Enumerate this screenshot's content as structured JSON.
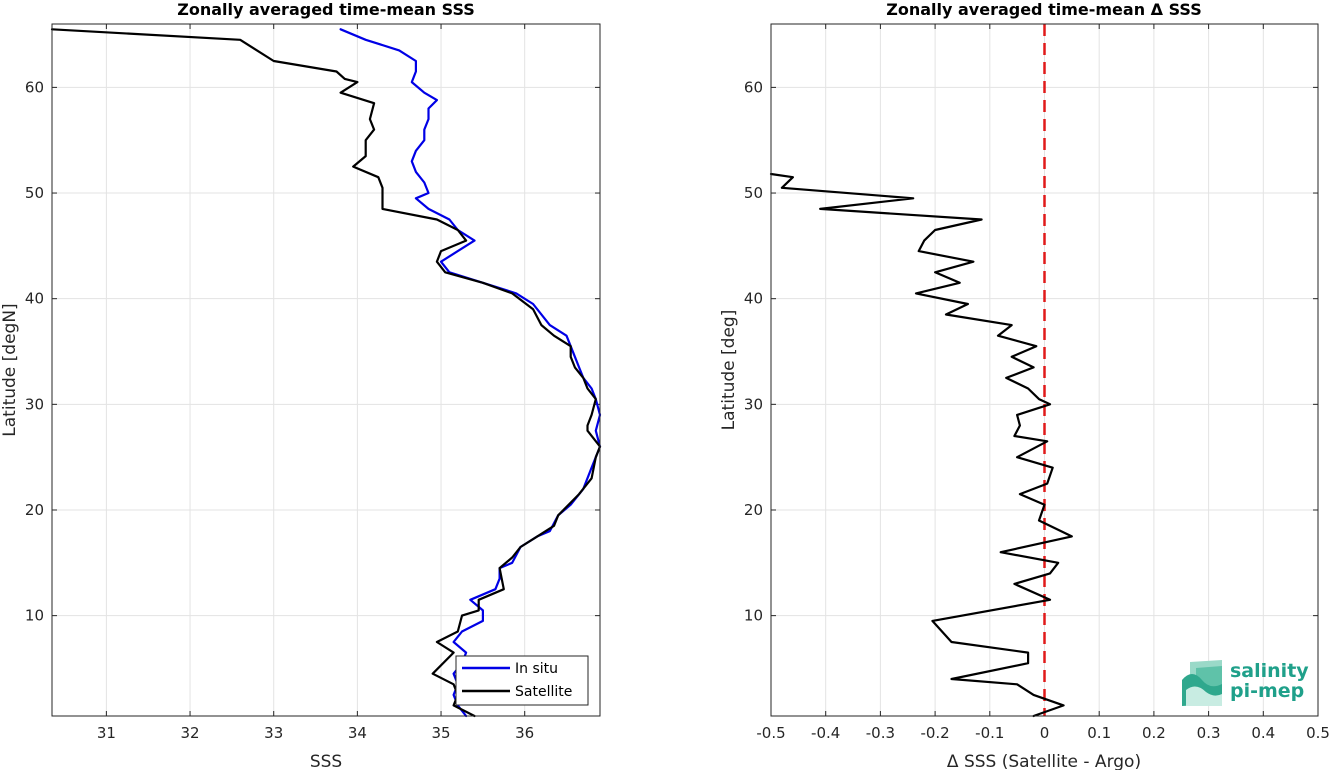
{
  "chart_data": [
    {
      "type": "line",
      "title": "Zonally averaged time-mean SSS",
      "xlabel": "SSS",
      "ylabel": "Latitude [degN]",
      "xlim": [
        30.35,
        36.9
      ],
      "ylim": [
        0.5,
        66
      ],
      "xticks": [
        31,
        32,
        33,
        34,
        35,
        36
      ],
      "yticks": [
        10,
        20,
        30,
        40,
        50,
        60
      ],
      "grid": true,
      "legend_position": "bottom-right",
      "series": [
        {
          "name": "In situ",
          "color": "#0000e6",
          "points": [
            [
              33.8,
              65.5
            ],
            [
              34.1,
              64.5
            ],
            [
              34.5,
              63.5
            ],
            [
              34.7,
              62.5
            ],
            [
              34.7,
              61.5
            ],
            [
              34.65,
              60.5
            ],
            [
              34.8,
              59.5
            ],
            [
              34.95,
              58.8
            ],
            [
              34.85,
              58.0
            ],
            [
              34.85,
              57.0
            ],
            [
              34.8,
              56.0
            ],
            [
              34.8,
              55.0
            ],
            [
              34.7,
              54.0
            ],
            [
              34.65,
              53.0
            ],
            [
              34.7,
              52.0
            ],
            [
              34.8,
              51.0
            ],
            [
              34.85,
              50.0
            ],
            [
              34.7,
              49.5
            ],
            [
              34.85,
              48.5
            ],
            [
              35.1,
              47.5
            ],
            [
              35.2,
              46.5
            ],
            [
              35.4,
              45.5
            ],
            [
              35.2,
              44.5
            ],
            [
              35.0,
              43.5
            ],
            [
              35.1,
              42.5
            ],
            [
              35.5,
              41.5
            ],
            [
              35.9,
              40.5
            ],
            [
              36.1,
              39.5
            ],
            [
              36.3,
              37.5
            ],
            [
              36.5,
              36.5
            ],
            [
              36.55,
              35.5
            ],
            [
              36.6,
              34.5
            ],
            [
              36.65,
              33.5
            ],
            [
              36.7,
              32.5
            ],
            [
              36.8,
              31.5
            ],
            [
              36.85,
              30.5
            ],
            [
              36.9,
              29.0
            ],
            [
              36.85,
              27.5
            ],
            [
              36.9,
              26.0
            ],
            [
              36.85,
              25.0
            ],
            [
              36.8,
              24.0
            ],
            [
              36.7,
              22.0
            ],
            [
              36.55,
              20.5
            ],
            [
              36.4,
              19.5
            ],
            [
              36.3,
              18.0
            ],
            [
              36.15,
              17.5
            ],
            [
              35.95,
              16.5
            ],
            [
              35.85,
              15.0
            ],
            [
              35.7,
              14.5
            ],
            [
              35.7,
              13.5
            ],
            [
              35.65,
              12.5
            ],
            [
              35.35,
              11.5
            ],
            [
              35.5,
              10.5
            ],
            [
              35.5,
              9.5
            ],
            [
              35.25,
              8.5
            ],
            [
              35.15,
              7.5
            ],
            [
              35.3,
              6.5
            ],
            [
              35.25,
              5.5
            ],
            [
              35.15,
              4.5
            ],
            [
              35.2,
              3.5
            ],
            [
              35.15,
              2.5
            ],
            [
              35.2,
              1.5
            ],
            [
              35.3,
              0.5
            ]
          ]
        },
        {
          "name": "Satellite",
          "color": "#000000",
          "points": [
            [
              30.35,
              65.5
            ],
            [
              32.6,
              64.5
            ],
            [
              33.0,
              62.5
            ],
            [
              33.75,
              61.5
            ],
            [
              33.85,
              60.8
            ],
            [
              34.0,
              60.5
            ],
            [
              33.8,
              59.5
            ],
            [
              34.2,
              58.5
            ],
            [
              34.15,
              57.0
            ],
            [
              34.2,
              56.0
            ],
            [
              34.1,
              55.0
            ],
            [
              34.1,
              54.0
            ],
            [
              34.1,
              53.5
            ],
            [
              33.95,
              52.5
            ],
            [
              34.25,
              51.5
            ],
            [
              34.3,
              50.5
            ],
            [
              34.3,
              49.5
            ],
            [
              34.3,
              48.5
            ],
            [
              34.95,
              47.5
            ],
            [
              35.2,
              46.5
            ],
            [
              35.3,
              45.5
            ],
            [
              35.0,
              44.5
            ],
            [
              34.95,
              43.5
            ],
            [
              35.05,
              42.5
            ],
            [
              35.5,
              41.5
            ],
            [
              35.85,
              40.5
            ],
            [
              36.1,
              39.0
            ],
            [
              36.2,
              37.5
            ],
            [
              36.35,
              36.5
            ],
            [
              36.55,
              35.5
            ],
            [
              36.55,
              34.5
            ],
            [
              36.6,
              33.5
            ],
            [
              36.7,
              32.5
            ],
            [
              36.75,
              31.5
            ],
            [
              36.85,
              30.5
            ],
            [
              36.8,
              29.0
            ],
            [
              36.75,
              28.0
            ],
            [
              36.75,
              27.5
            ],
            [
              36.9,
              26.0
            ],
            [
              36.85,
              25.0
            ],
            [
              36.8,
              23.0
            ],
            [
              36.65,
              21.5
            ],
            [
              36.4,
              19.5
            ],
            [
              36.35,
              18.5
            ],
            [
              36.15,
              17.5
            ],
            [
              35.95,
              16.5
            ],
            [
              35.85,
              15.5
            ],
            [
              35.7,
              14.5
            ],
            [
              35.75,
              12.5
            ],
            [
              35.45,
              11.5
            ],
            [
              35.45,
              10.5
            ],
            [
              35.25,
              10.0
            ],
            [
              35.2,
              8.5
            ],
            [
              34.95,
              7.5
            ],
            [
              35.15,
              6.5
            ],
            [
              34.9,
              4.5
            ],
            [
              35.15,
              3.5
            ],
            [
              35.2,
              2.5
            ],
            [
              35.15,
              1.5
            ],
            [
              35.4,
              0.5
            ]
          ]
        }
      ]
    },
    {
      "type": "line",
      "title": "Zonally averaged time-mean Δ SSS",
      "xlabel": "Δ SSS (Satellite - Argo)",
      "ylabel": "Latitude [deg]",
      "xlim": [
        -0.5,
        0.5
      ],
      "ylim": [
        0.5,
        66
      ],
      "xticks": [
        -0.5,
        -0.4,
        -0.3,
        -0.2,
        -0.1,
        0,
        0.1,
        0.2,
        0.3,
        0.4,
        0.5
      ],
      "yticks": [
        10,
        20,
        30,
        40,
        50,
        60
      ],
      "grid": true,
      "reference_line": {
        "x": 0,
        "color": "#e01a1a",
        "style": "dashed"
      },
      "series": [
        {
          "name": "",
          "color": "#000000",
          "points": [
            [
              -0.5,
              51.8
            ],
            [
              -0.46,
              51.5
            ],
            [
              -0.48,
              50.5
            ],
            [
              -0.24,
              49.5
            ],
            [
              -0.41,
              48.5
            ],
            [
              -0.115,
              47.5
            ],
            [
              -0.2,
              46.5
            ],
            [
              -0.22,
              45.5
            ],
            [
              -0.23,
              44.5
            ],
            [
              -0.13,
              43.5
            ],
            [
              -0.2,
              42.5
            ],
            [
              -0.155,
              41.5
            ],
            [
              -0.235,
              40.5
            ],
            [
              -0.14,
              39.5
            ],
            [
              -0.18,
              38.5
            ],
            [
              -0.06,
              37.5
            ],
            [
              -0.085,
              36.5
            ],
            [
              -0.015,
              35.5
            ],
            [
              -0.06,
              34.5
            ],
            [
              -0.02,
              33.5
            ],
            [
              -0.07,
              32.5
            ],
            [
              -0.03,
              31.5
            ],
            [
              -0.01,
              30.5
            ],
            [
              0.01,
              30.0
            ],
            [
              -0.05,
              29.0
            ],
            [
              -0.045,
              28.0
            ],
            [
              -0.055,
              27.0
            ],
            [
              0.005,
              26.5
            ],
            [
              -0.05,
              25.0
            ],
            [
              0.015,
              24.0
            ],
            [
              0.005,
              22.5
            ],
            [
              -0.045,
              21.5
            ],
            [
              0.0,
              20.5
            ],
            [
              -0.01,
              19.0
            ],
            [
              0.05,
              17.5
            ],
            [
              -0.08,
              16.0
            ],
            [
              0.025,
              15.0
            ],
            [
              0.01,
              14.0
            ],
            [
              -0.055,
              13.0
            ],
            [
              0.01,
              11.5
            ],
            [
              -0.205,
              9.5
            ],
            [
              -0.17,
              7.5
            ],
            [
              -0.03,
              6.5
            ],
            [
              -0.03,
              5.5
            ],
            [
              -0.17,
              4.0
            ],
            [
              -0.05,
              3.5
            ],
            [
              -0.02,
              2.5
            ],
            [
              0.035,
              1.5
            ],
            [
              -0.02,
              0.5
            ]
          ]
        }
      ]
    }
  ],
  "legend": {
    "entries": [
      {
        "label": "In situ",
        "color": "#0000e6"
      },
      {
        "label": "Satellite",
        "color": "#000000"
      }
    ]
  },
  "logo": {
    "line1": "salinity",
    "line2": "pi-mep"
  }
}
